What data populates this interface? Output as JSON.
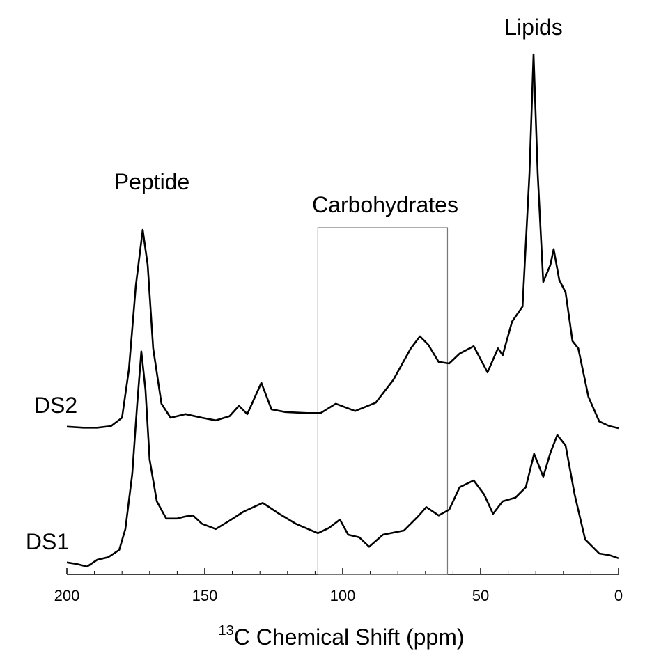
{
  "chart_data": {
    "type": "line",
    "xlabel_sup": "13",
    "xlabel": "C Chemical Shift (ppm)",
    "annotations": [
      "Peptide",
      "Carbohydrates",
      "Lipids"
    ],
    "xlim": [
      200,
      0
    ],
    "xticks": [
      200,
      150,
      100,
      50,
      0
    ],
    "xminorticks": [
      190,
      180,
      170,
      160,
      140,
      130,
      120,
      110,
      90,
      80,
      70,
      60,
      40,
      30,
      20,
      10
    ],
    "ylim": [
      0,
      100
    ],
    "region": [
      109,
      62
    ],
    "color": "#000000",
    "series": [
      {
        "name": "DS2",
        "color": "#000000",
        "x": [
          200,
          194,
          189,
          184,
          180,
          177.5,
          175,
          172.5,
          170.7,
          168.7,
          165.7,
          162.4,
          157,
          151,
          146,
          141,
          137.6,
          134.6,
          129.5,
          125.8,
          120.7,
          113,
          108,
          102.5,
          95.5,
          88,
          81.6,
          75.3,
          72,
          69,
          65.2,
          61.4,
          57.6,
          52.5,
          47.5,
          43.7,
          42,
          38.6,
          34.8,
          32.3,
          30.8,
          29.3,
          27.3,
          24.7,
          23.5,
          21.5,
          19.2,
          16.7,
          14.6,
          10.9,
          7,
          3.3,
          0
        ],
        "values": [
          28.3,
          28.1,
          28.1,
          28.4,
          30,
          39.3,
          55.3,
          66,
          59.3,
          43.3,
          32.7,
          30,
          30.7,
          30,
          29.5,
          30.3,
          32.3,
          30.7,
          36.7,
          31.6,
          31.1,
          30.9,
          30.9,
          32.7,
          31.3,
          32.9,
          37.3,
          43.3,
          45.6,
          44,
          40.7,
          40.4,
          42.3,
          43.7,
          38.7,
          43.3,
          42,
          48.4,
          51.3,
          76.7,
          99.6,
          76.7,
          56,
          59.3,
          62.3,
          56.4,
          54,
          44.7,
          43.3,
          34,
          29.3,
          28.4,
          28
        ]
      },
      {
        "name": "DS1",
        "color": "#000000",
        "x": [
          200,
          196.5,
          192.7,
          189,
          185,
          181,
          178.8,
          176.3,
          174.5,
          173,
          171.5,
          170,
          167.4,
          164,
          160,
          157,
          154.3,
          151,
          146,
          141,
          136,
          129,
          123,
          117,
          109,
          105,
          101,
          98,
          94,
          90.4,
          85.4,
          77.8,
          72.7,
          69.7,
          65.2,
          61.4,
          57.6,
          52.5,
          48.7,
          45.5,
          42,
          37.4,
          33.6,
          30.6,
          27.3,
          24.7,
          22.2,
          19.2,
          15.9,
          12.1,
          7,
          3.3,
          0
        ],
        "values": [
          2.3,
          2,
          1.5,
          2.8,
          3.3,
          4.7,
          8.7,
          19.3,
          32.7,
          42.7,
          35.3,
          22,
          14,
          10.7,
          10.7,
          11.1,
          11.3,
          9.7,
          8.7,
          10.3,
          12,
          13.7,
          11.6,
          9.7,
          7.9,
          8.9,
          10.5,
          7.6,
          7.1,
          5.3,
          7.6,
          8.4,
          11.1,
          12.9,
          11.3,
          12.4,
          16.7,
          18,
          15.3,
          11.6,
          14,
          14.7,
          16.7,
          23.1,
          18.7,
          23.3,
          26.7,
          24.7,
          15.3,
          6.7,
          4,
          3.7,
          3.1
        ]
      }
    ]
  }
}
